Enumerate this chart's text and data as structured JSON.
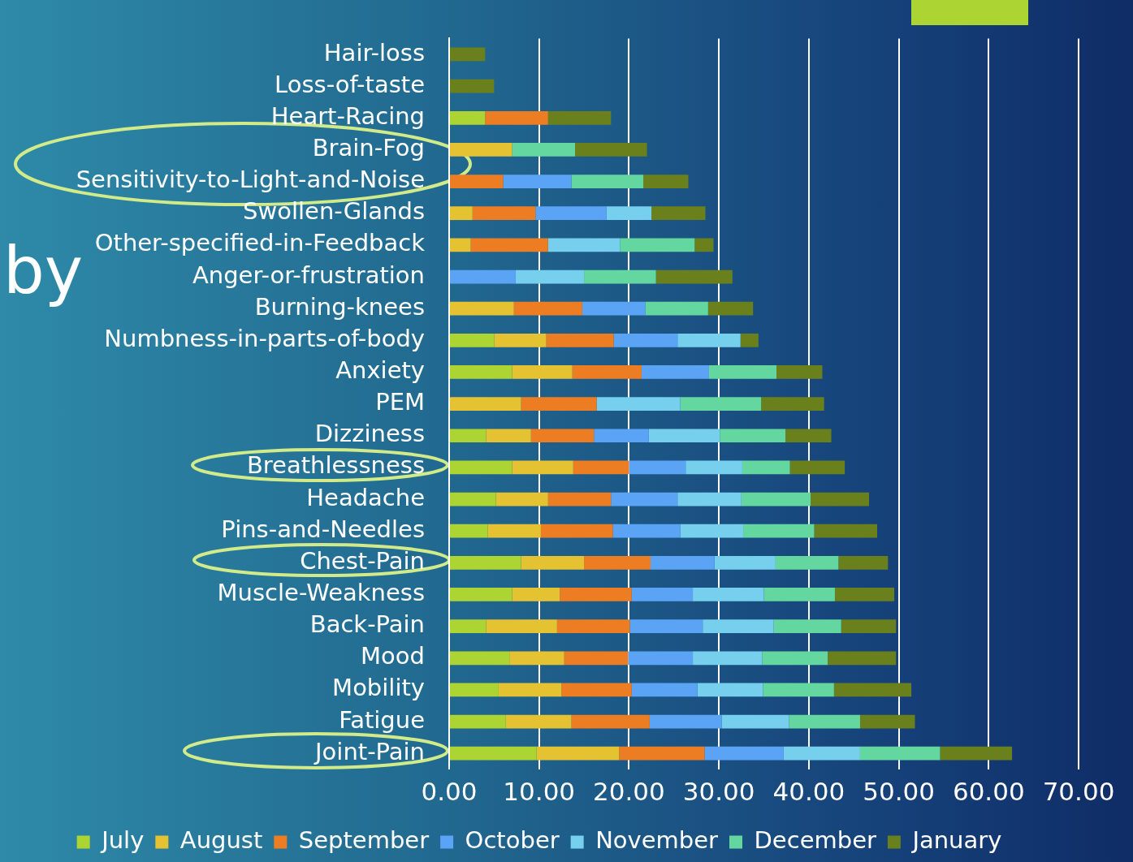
{
  "chart_data": {
    "type": "bar",
    "orientation": "horizontal",
    "stacked": true,
    "annotations": [
      "by"
    ],
    "categories": [
      "Hair-loss",
      "Loss-of-taste",
      "Heart-Racing",
      "Brain-Fog",
      "Sensitivity-to-Light-and-Noise",
      "Swollen-Glands",
      "Other-specified-in-Feedback",
      "Anger-or-frustration",
      "Burning-knees",
      "Numbness-in-parts-of-body",
      "Anxiety",
      "PEM",
      "Dizziness",
      "Breathlessness",
      "Headache",
      "Pins-and-Needles",
      "Chest-Pain",
      "Muscle-Weakness",
      "Back-Pain",
      "Mood",
      "Mobility",
      "Fatigue",
      "Joint-Pain"
    ],
    "series": [
      {
        "name": "July",
        "color": "#acd433",
        "values": [
          0,
          0,
          4.0,
          0,
          0,
          0,
          0,
          0,
          0,
          5.0,
          7.0,
          0,
          4.1,
          7.0,
          5.2,
          4.3,
          8.0,
          7.0,
          4.1,
          6.7,
          5.5,
          6.3,
          9.7
        ]
      },
      {
        "name": "August",
        "color": "#e5c232",
        "values": [
          0,
          0,
          0,
          7.0,
          0,
          2.6,
          2.4,
          0,
          7.2,
          5.8,
          6.7,
          8.0,
          5.0,
          6.8,
          5.8,
          5.9,
          7.0,
          5.3,
          7.9,
          6.1,
          7.0,
          7.3,
          9.2
        ]
      },
      {
        "name": "September",
        "color": "#ed7d22",
        "values": [
          0,
          0,
          7.0,
          0,
          6.0,
          7.0,
          8.6,
          0,
          7.6,
          7.5,
          7.7,
          8.4,
          7.0,
          6.2,
          7.0,
          8.0,
          7.4,
          8.0,
          8.1,
          7.1,
          7.8,
          8.7,
          9.5
        ]
      },
      {
        "name": "October",
        "color": "#5ba3f5",
        "values": [
          0,
          0,
          0,
          0,
          7.6,
          7.9,
          0,
          7.4,
          7.0,
          7.1,
          7.5,
          0,
          6.1,
          6.3,
          7.4,
          7.5,
          7.1,
          6.8,
          8.1,
          7.2,
          7.3,
          8.0,
          8.8
        ]
      },
      {
        "name": "November",
        "color": "#76cfec",
        "values": [
          0,
          0,
          0,
          0,
          0,
          5.0,
          8.0,
          7.6,
          0,
          7.0,
          0,
          9.3,
          7.9,
          6.3,
          7.1,
          7.0,
          6.8,
          7.9,
          7.9,
          7.7,
          7.3,
          7.5,
          8.5
        ]
      },
      {
        "name": "December",
        "color": "#64d6a0",
        "values": [
          0,
          0,
          0,
          7.0,
          8.0,
          0,
          8.3,
          8.0,
          7.0,
          0,
          7.5,
          9.0,
          7.3,
          5.3,
          7.7,
          7.9,
          7.0,
          7.9,
          7.5,
          7.3,
          7.9,
          7.9,
          8.9
        ]
      },
      {
        "name": "January",
        "color": "#6a801c",
        "values": [
          4.0,
          5.0,
          7.0,
          8.0,
          5.0,
          6.0,
          2.1,
          8.5,
          5.0,
          2.0,
          5.1,
          7.0,
          5.1,
          6.1,
          6.5,
          7.0,
          5.5,
          6.6,
          6.1,
          7.6,
          8.6,
          6.1,
          8.0
        ]
      }
    ],
    "xlim": [
      0,
      70
    ],
    "xticks": [
      {
        "value": 0,
        "label": "0.00"
      },
      {
        "value": 10,
        "label": "10.00"
      },
      {
        "value": 20,
        "label": "20.00"
      },
      {
        "value": 30,
        "label": "30.00"
      },
      {
        "value": 40,
        "label": "40.00"
      },
      {
        "value": 50,
        "label": "50.00"
      },
      {
        "value": 60,
        "label": "60.00"
      },
      {
        "value": 70,
        "label": "70.00"
      }
    ],
    "grid": "x",
    "legend": "bottom"
  }
}
